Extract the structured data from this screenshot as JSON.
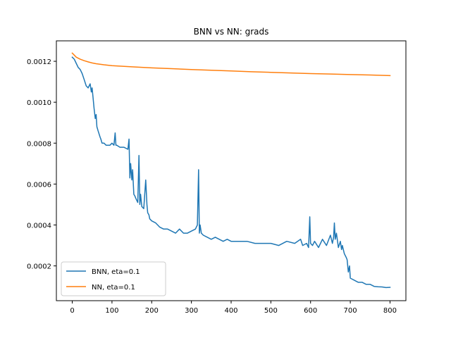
{
  "chart_data": {
    "type": "line",
    "title": "BNN vs NN: grads",
    "xlabel": "",
    "ylabel": "",
    "xlim": [
      -40,
      840
    ],
    "ylim": [
      3e-05,
      0.0013
    ],
    "xticks": [
      0,
      100,
      200,
      300,
      400,
      500,
      600,
      700,
      800
    ],
    "xtick_labels": [
      "0",
      "100",
      "200",
      "300",
      "400",
      "500",
      "600",
      "700",
      "800"
    ],
    "yticks": [
      0.0002,
      0.0004,
      0.0006,
      0.0008,
      0.001,
      0.0012
    ],
    "ytick_labels": [
      "0.0002",
      "0.0004",
      "0.0006",
      "0.0008",
      "0.0010",
      "0.0012"
    ],
    "grid": false,
    "legend_position": "lower-left",
    "series": [
      {
        "name": "BNN, eta=0.1",
        "color": "#1f77b4",
        "x": [
          0,
          5,
          10,
          15,
          20,
          25,
          30,
          35,
          40,
          45,
          48,
          50,
          53,
          55,
          58,
          60,
          62,
          65,
          70,
          72,
          75,
          80,
          85,
          90,
          95,
          100,
          105,
          108,
          110,
          112,
          120,
          130,
          140,
          143,
          145,
          147,
          150,
          152,
          155,
          158,
          160,
          165,
          168,
          170,
          172,
          175,
          180,
          185,
          188,
          190,
          193,
          195,
          200,
          210,
          215,
          220,
          230,
          240,
          250,
          260,
          270,
          280,
          290,
          300,
          310,
          315,
          318,
          320,
          322,
          325,
          330,
          340,
          350,
          360,
          370,
          380,
          390,
          400,
          420,
          440,
          460,
          480,
          500,
          520,
          540,
          560,
          575,
          580,
          590,
          595,
          598,
          600,
          605,
          610,
          620,
          630,
          640,
          650,
          655,
          658,
          660,
          662,
          665,
          670,
          675,
          678,
          680,
          685,
          690,
          692,
          695,
          698,
          700,
          710,
          720,
          730,
          740,
          750,
          760,
          770,
          780,
          790,
          800
        ],
        "y": [
          0.00122,
          0.00121,
          0.00119,
          0.00117,
          0.00116,
          0.00114,
          0.00111,
          0.00108,
          0.00107,
          0.00109,
          0.00105,
          0.00107,
          0.00101,
          0.00097,
          0.00092,
          0.00094,
          0.00088,
          0.00086,
          0.00083,
          0.00082,
          0.0008,
          0.0008,
          0.00079,
          0.00079,
          0.00079,
          0.0008,
          0.00079,
          0.00085,
          0.00079,
          0.00079,
          0.00078,
          0.00078,
          0.00077,
          0.00082,
          0.00063,
          0.0007,
          0.00062,
          0.00067,
          0.00055,
          0.00054,
          0.00053,
          0.00051,
          0.00074,
          0.0005,
          0.00055,
          0.00049,
          0.00048,
          0.00062,
          0.0005,
          0.00046,
          0.00045,
          0.00043,
          0.00042,
          0.00041,
          0.0004,
          0.00039,
          0.00038,
          0.00038,
          0.00037,
          0.00036,
          0.00038,
          0.00036,
          0.00036,
          0.00037,
          0.00038,
          0.0004,
          0.00067,
          0.00036,
          0.0004,
          0.00036,
          0.00035,
          0.00034,
          0.00033,
          0.00034,
          0.00033,
          0.00032,
          0.00033,
          0.00032,
          0.00032,
          0.00032,
          0.00031,
          0.00031,
          0.00031,
          0.0003,
          0.00032,
          0.00031,
          0.00033,
          0.0003,
          0.00031,
          0.00029,
          0.00044,
          0.00031,
          0.0003,
          0.00032,
          0.00029,
          0.00033,
          0.0003,
          0.00035,
          0.00031,
          0.00034,
          0.00041,
          0.00033,
          0.00036,
          0.00029,
          0.00032,
          0.00028,
          0.0003,
          0.00026,
          0.00024,
          0.00023,
          0.00017,
          0.0002,
          0.00014,
          0.00013,
          0.00012,
          0.00012,
          0.00011,
          0.00011,
          0.0001,
          9.8e-05,
          9.7e-05,
          9.4e-05,
          9.5e-05
        ]
      },
      {
        "name": "NN, eta=0.1",
        "color": "#ff7f0e",
        "x": [
          0,
          5,
          10,
          20,
          30,
          40,
          50,
          60,
          80,
          100,
          150,
          200,
          250,
          300,
          350,
          400,
          450,
          500,
          550,
          600,
          650,
          700,
          750,
          800
        ],
        "y": [
          0.00124,
          0.00123,
          0.00122,
          0.00121,
          0.001203,
          0.001197,
          0.001192,
          0.001188,
          0.001183,
          0.001179,
          0.001173,
          0.001168,
          0.001164,
          0.00116,
          0.001156,
          0.001153,
          0.001149,
          0.001146,
          0.001143,
          0.00114,
          0.001138,
          0.001135,
          0.001133,
          0.00113
        ]
      }
    ]
  }
}
